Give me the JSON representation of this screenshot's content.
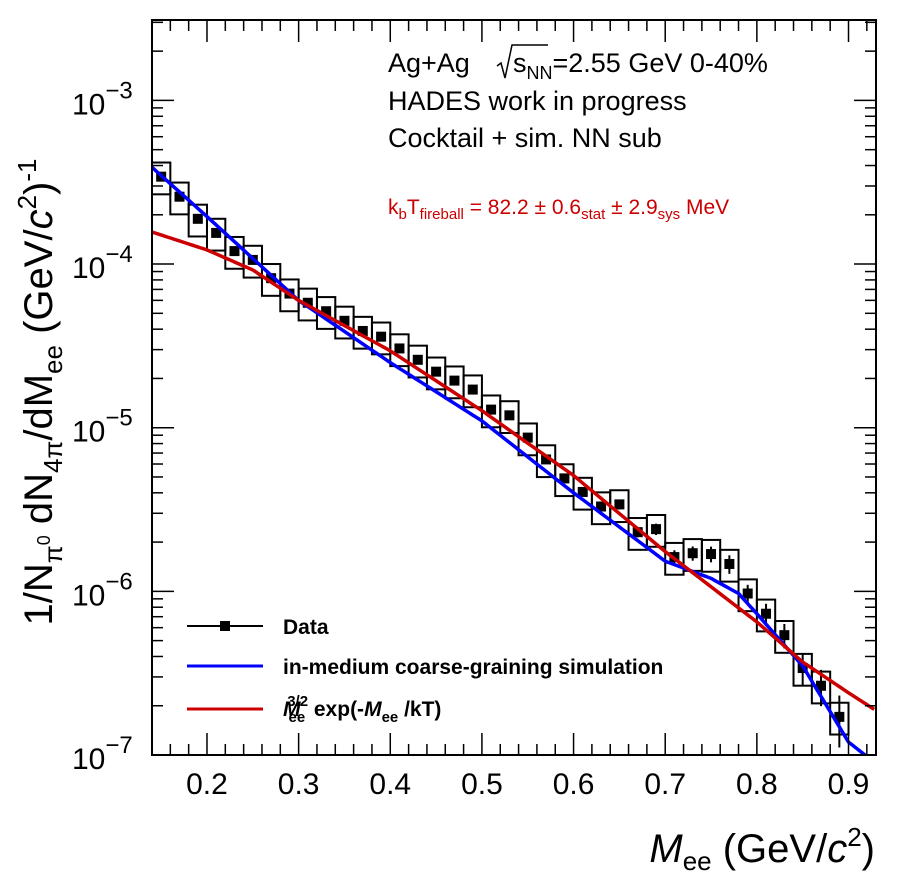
{
  "chart_data": {
    "type": "scatter",
    "xlabel": {
      "main": "M",
      "sub": "ee",
      "unit": " (GeV/",
      "unit_c": "c",
      "unit_sup": "2",
      "unit_end": ")"
    },
    "ylabel": {
      "p1": "1/N",
      "p1_sub": "π",
      "p1_subsup": "0",
      "p2": " dN",
      "p2_sub": "4π",
      "p3": "/dM",
      "p3_sub": "ee",
      "p4": " (GeV/",
      "p4_c": "c",
      "p4_sup": "2",
      "p5": ")",
      "p5_sup": "-1"
    },
    "xlim": [
      0.14,
      0.93
    ],
    "ylim": [
      1e-07,
      0.0031
    ],
    "yscale": "log",
    "x_ticks": [
      "0.2",
      "0.3",
      "0.4",
      "0.5",
      "0.6",
      "0.7",
      "0.8",
      "0.9"
    ],
    "y_ticks": [
      {
        "base": "10",
        "exp": "−3"
      },
      {
        "base": "10",
        "exp": "−4"
      },
      {
        "base": "10",
        "exp": "−5"
      },
      {
        "base": "10",
        "exp": "−6"
      },
      {
        "base": "10",
        "exp": "−7"
      }
    ],
    "annotations": {
      "line1_a": "Ag+Ag ",
      "line1_s": "s",
      "line1_sub": "NN",
      "line1_b": "=2.55 GeV 0-40%",
      "line2": "HADES work in progress",
      "line3": "Cocktail + sim. NN sub",
      "fit_k": "k",
      "fit_b": "b",
      "fit_T": "T",
      "fit_sub": "fireball",
      "fit_mid": " = 82.2 ± 0.6",
      "fit_stat": "stat",
      "fit_mid2": " ± 2.9",
      "fit_sys": "sys",
      "fit_end": " MeV",
      "fit_color": "#cc0000"
    },
    "legend": {
      "position": "bottom-left",
      "data_label": "Data",
      "blue_label": "in-medium coarse-graining simulation",
      "red_M": "M",
      "red_sub": "ee",
      "red_sup": "3/2",
      "red_mid": " exp(-",
      "red_M2": "M",
      "red_sub2": "ee",
      "red_end": " /kT)"
    },
    "series": [
      {
        "name": "Data",
        "type": "points",
        "color": "#000000",
        "sys_rel": 0.22,
        "x": [
          0.15,
          0.17,
          0.19,
          0.21,
          0.23,
          0.25,
          0.27,
          0.29,
          0.31,
          0.33,
          0.35,
          0.37,
          0.39,
          0.41,
          0.43,
          0.45,
          0.47,
          0.49,
          0.51,
          0.53,
          0.55,
          0.57,
          0.59,
          0.61,
          0.63,
          0.65,
          0.67,
          0.69,
          0.71,
          0.73,
          0.75,
          0.77,
          0.79,
          0.81,
          0.83,
          0.85,
          0.87,
          0.89
        ],
        "y": [
          0.000342,
          0.000258,
          0.000189,
          0.000155,
          0.00012,
          0.000106,
          8.2e-05,
          6.6e-05,
          5.8e-05,
          5.15e-05,
          4.5e-05,
          3.9e-05,
          3.6e-05,
          3.05e-05,
          2.6e-05,
          2.2e-05,
          1.94e-05,
          1.71e-05,
          1.29e-05,
          1.19e-05,
          8.7e-06,
          6.4e-06,
          4.9e-06,
          4.05e-06,
          3.3e-06,
          3.4e-06,
          2.3e-06,
          2.4e-06,
          1.62e-06,
          1.71e-06,
          1.69e-06,
          1.47e-06,
          9.7e-07,
          7.3e-07,
          5.4e-07,
          3.4e-07,
          2.65e-07,
          1.71e-07
        ],
        "stat_rel": [
          0.02,
          0.02,
          0.02,
          0.02,
          0.02,
          0.02,
          0.02,
          0.02,
          0.02,
          0.02,
          0.02,
          0.02,
          0.02,
          0.02,
          0.02,
          0.02,
          0.02,
          0.03,
          0.03,
          0.03,
          0.04,
          0.04,
          0.05,
          0.05,
          0.06,
          0.07,
          0.07,
          0.08,
          0.1,
          0.1,
          0.11,
          0.13,
          0.13,
          0.15,
          0.17,
          0.22,
          0.25,
          0.35
        ]
      },
      {
        "name": "in-medium coarse-graining simulation",
        "type": "line",
        "color": "#0000ff",
        "x": [
          0.14,
          0.2,
          0.3,
          0.4,
          0.5,
          0.6,
          0.7,
          0.75,
          0.78,
          0.8,
          0.85,
          0.9,
          0.918
        ],
        "y": [
          0.00039,
          0.000195,
          6e-05,
          2.5e-05,
          1.1e-05,
          4e-06,
          1.53e-06,
          1.2e-06,
          9.7e-07,
          7.3e-07,
          3.5e-07,
          1.2e-07,
          1e-07
        ]
      },
      {
        "name": "M_ee^3/2 exp(-M_ee/kT)",
        "type": "line",
        "color": "#cc0000",
        "x": [
          0.14,
          0.2,
          0.25,
          0.3,
          0.4,
          0.5,
          0.6,
          0.7,
          0.8,
          0.85,
          0.9,
          0.928
        ],
        "y": [
          0.000157,
          0.000122,
          9.2e-05,
          6e-05,
          2.95e-05,
          1.27e-05,
          5.1e-06,
          1.75e-06,
          6.5e-07,
          3.7e-07,
          2.4e-07,
          1.9e-07
        ]
      }
    ]
  }
}
